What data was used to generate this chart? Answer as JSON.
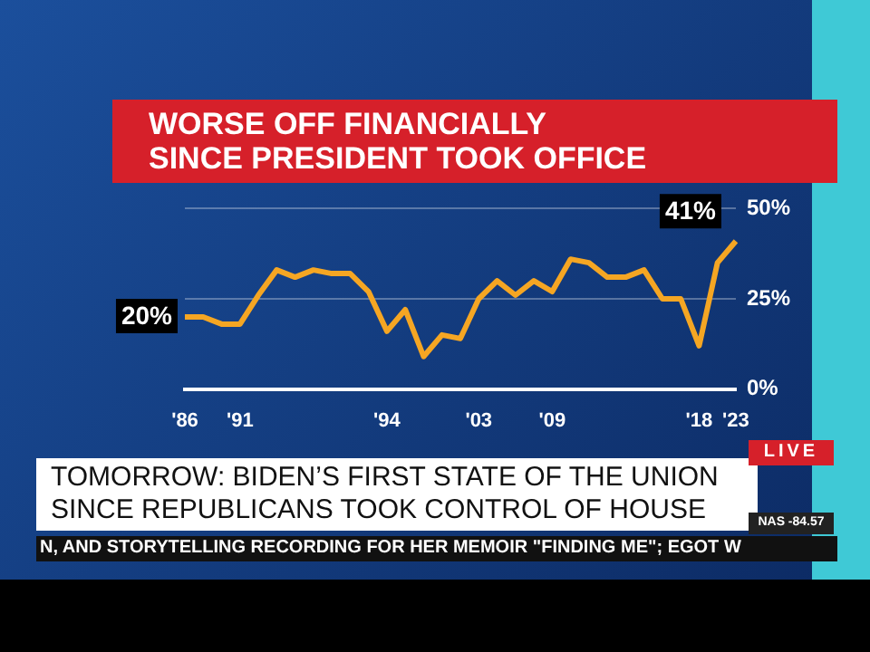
{
  "chart_data": {
    "type": "line",
    "title": "WORSE OFF FINANCIALLY\nSINCE PRESIDENT TOOK OFFICE",
    "categories": [
      "'86",
      null,
      null,
      "'91",
      null,
      null,
      null,
      null,
      null,
      null,
      null,
      "'94",
      null,
      null,
      null,
      null,
      "'03",
      null,
      null,
      null,
      "'09",
      null,
      null,
      null,
      null,
      null,
      null,
      null,
      "'18",
      null,
      "'23"
    ],
    "series": [
      {
        "color": "#f5a623",
        "values": [
          20,
          20,
          18,
          18,
          26,
          33,
          31,
          33,
          32,
          32,
          27,
          16,
          22,
          9,
          15,
          14,
          25,
          30,
          26,
          30,
          27,
          36,
          35,
          31,
          31,
          33,
          25,
          25,
          12,
          35,
          41
        ],
        "value_labels": [
          "20%",
          null,
          null,
          null,
          null,
          null,
          null,
          null,
          null,
          null,
          null,
          null,
          null,
          null,
          null,
          null,
          null,
          null,
          null,
          null,
          null,
          null,
          null,
          null,
          null,
          null,
          null,
          null,
          null,
          null,
          "41%"
        ]
      }
    ],
    "ylim": [
      0,
      50
    ],
    "yticks": [
      {
        "value": 0,
        "label": "0%"
      },
      {
        "value": 25,
        "label": "25%"
      },
      {
        "value": 50,
        "label": "50%"
      }
    ],
    "grid": "y",
    "legend": false,
    "marker": "none",
    "line_style": "solid",
    "annotations": [
      "TOMORROW: BIDEN’S FIRST STATE OF THE UNION\nSINCE REPUBLICANS TOOK CONTROL OF HOUSE",
      "LIVE",
      "N, AND STORYTELLING RECORDING FOR HER MEMOIR \"FINDING ME\"; EGOT W",
      "NAS -84.57"
    ]
  }
}
